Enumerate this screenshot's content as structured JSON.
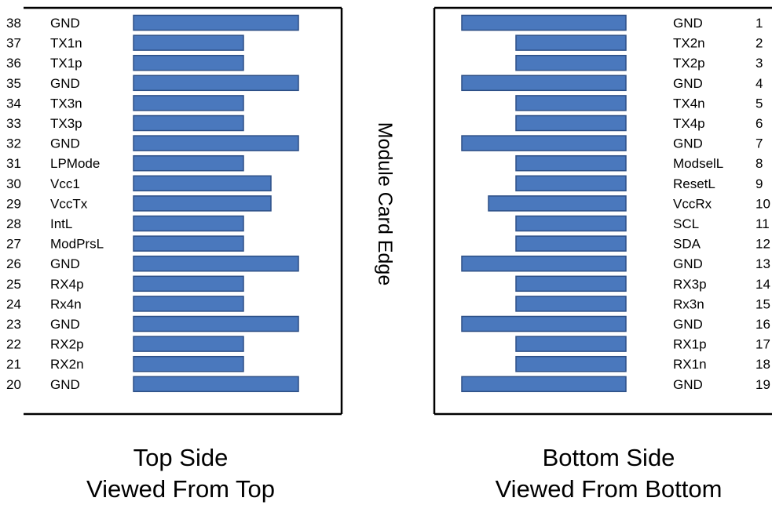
{
  "colors": {
    "pad_fill": "#4a78bd",
    "pad_stroke": "#2d4f86",
    "frame": "#000000",
    "text": "#000000"
  },
  "edge_label": "Module Card Edge",
  "top_side": {
    "caption_line1": "Top Side",
    "caption_line2": "Viewed From Top",
    "pins": [
      {
        "number": "38",
        "name": "GND",
        "pad": "long"
      },
      {
        "number": "37",
        "name": "TX1n",
        "pad": "short"
      },
      {
        "number": "36",
        "name": "TX1p",
        "pad": "short"
      },
      {
        "number": "35",
        "name": "GND",
        "pad": "long"
      },
      {
        "number": "34",
        "name": "TX3n",
        "pad": "short"
      },
      {
        "number": "33",
        "name": "TX3p",
        "pad": "short"
      },
      {
        "number": "32",
        "name": "GND",
        "pad": "long"
      },
      {
        "number": "31",
        "name": "LPMode",
        "pad": "short"
      },
      {
        "number": "30",
        "name": "Vcc1",
        "pad": "medium"
      },
      {
        "number": "29",
        "name": "VccTx",
        "pad": "medium"
      },
      {
        "number": "28",
        "name": "IntL",
        "pad": "short"
      },
      {
        "number": "27",
        "name": "ModPrsL",
        "pad": "short"
      },
      {
        "number": "26",
        "name": "GND",
        "pad": "long"
      },
      {
        "number": "25",
        "name": "RX4p",
        "pad": "short"
      },
      {
        "number": "24",
        "name": "Rx4n",
        "pad": "short"
      },
      {
        "number": "23",
        "name": "GND",
        "pad": "long"
      },
      {
        "number": "22",
        "name": "RX2p",
        "pad": "short"
      },
      {
        "number": "21",
        "name": "RX2n",
        "pad": "short"
      },
      {
        "number": "20",
        "name": "GND",
        "pad": "long"
      }
    ]
  },
  "bottom_side": {
    "caption_line1": "Bottom Side",
    "caption_line2": "Viewed From Bottom",
    "pins": [
      {
        "number": "1",
        "name": "GND",
        "pad": "long"
      },
      {
        "number": "2",
        "name": "TX2n",
        "pad": "short"
      },
      {
        "number": "3",
        "name": "TX2p",
        "pad": "short"
      },
      {
        "number": "4",
        "name": "GND",
        "pad": "long"
      },
      {
        "number": "5",
        "name": "TX4n",
        "pad": "short"
      },
      {
        "number": "6",
        "name": "TX4p",
        "pad": "short"
      },
      {
        "number": "7",
        "name": "GND",
        "pad": "long"
      },
      {
        "number": "8",
        "name": "ModselL",
        "pad": "short"
      },
      {
        "number": "9",
        "name": "ResetL",
        "pad": "short"
      },
      {
        "number": "10",
        "name": "VccRx",
        "pad": "medium"
      },
      {
        "number": "11",
        "name": "SCL",
        "pad": "short"
      },
      {
        "number": "12",
        "name": "SDA",
        "pad": "short"
      },
      {
        "number": "13",
        "name": "GND",
        "pad": "long"
      },
      {
        "number": "14",
        "name": "RX3p",
        "pad": "short"
      },
      {
        "number": "15",
        "name": "Rx3n",
        "pad": "short"
      },
      {
        "number": "16",
        "name": "GND",
        "pad": "long"
      },
      {
        "number": "17",
        "name": "RX1p",
        "pad": "short"
      },
      {
        "number": "18",
        "name": "RX1n",
        "pad": "short"
      },
      {
        "number": "19",
        "name": "GND",
        "pad": "long"
      }
    ]
  }
}
